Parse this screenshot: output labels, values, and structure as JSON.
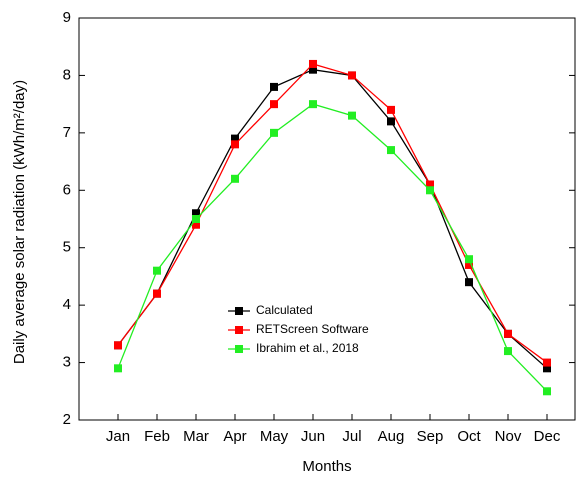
{
  "chart_data": {
    "type": "line",
    "x_label": "Months",
    "y_label": "Daily average solar radiation (kWh/m²/day)",
    "categories": [
      "Jan",
      "Feb",
      "Mar",
      "Apr",
      "May",
      "Jun",
      "Jul",
      "Aug",
      "Sep",
      "Oct",
      "Nov",
      "Dec"
    ],
    "series": [
      {
        "name": "Calculated",
        "color": "#000000",
        "values": [
          3.3,
          4.2,
          5.6,
          6.9,
          7.8,
          8.1,
          8.0,
          7.2,
          6.1,
          4.4,
          3.5,
          2.9
        ]
      },
      {
        "name": "RETScreen Software",
        "color": "#ff0000",
        "values": [
          3.3,
          4.2,
          5.4,
          6.8,
          7.5,
          8.2,
          8.0,
          7.4,
          6.1,
          4.7,
          3.5,
          3.0
        ]
      },
      {
        "name": "Ibrahim et al., 2018",
        "color": "#22ee22",
        "values": [
          2.9,
          4.6,
          5.5,
          6.2,
          7.0,
          7.5,
          7.3,
          6.7,
          6.0,
          4.8,
          3.2,
          2.5
        ]
      }
    ],
    "ylim": [
      2,
      9
    ],
    "yticks": [
      2,
      3,
      4,
      5,
      6,
      7,
      8,
      9
    ],
    "legend": "lower-left"
  }
}
